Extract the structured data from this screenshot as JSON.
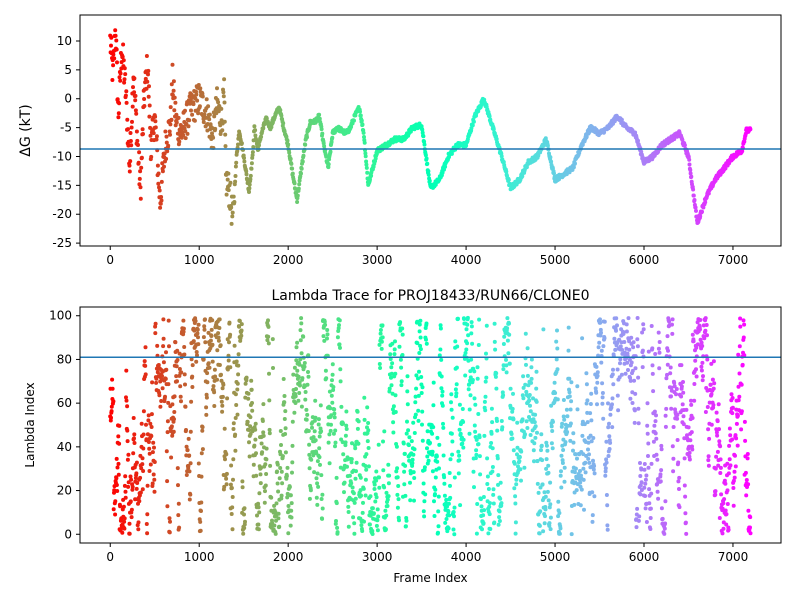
{
  "figure": {
    "colormap": "rainbow",
    "point_color_encoding": "frame index"
  },
  "chart_data": [
    {
      "type": "scatter",
      "title": "",
      "xlabel": "",
      "ylabel": "ΔG (kT)",
      "xlim": [
        -340,
        7540
      ],
      "ylim": [
        -25.5,
        14.5
      ],
      "xticks": [
        "0",
        "1000",
        "2000",
        "3000",
        "4000",
        "5000",
        "6000",
        "7000"
      ],
      "yticks": [
        "10",
        "5",
        "0",
        "-5",
        "-10",
        "-15",
        "-20",
        "-25"
      ],
      "grid": false,
      "legend": "none",
      "reference_line": {
        "y": -8.7,
        "color": "#1f77b4"
      },
      "n_frames": 7200,
      "trend": [
        [
          0,
          10
        ],
        [
          30,
          4
        ],
        [
          60,
          12.5
        ],
        [
          90,
          -3
        ],
        [
          130,
          9
        ],
        [
          170,
          2
        ],
        [
          220,
          -12
        ],
        [
          260,
          5
        ],
        [
          300,
          -6
        ],
        [
          340,
          -16
        ],
        [
          380,
          0
        ],
        [
          420,
          6
        ],
        [
          460,
          -9
        ],
        [
          500,
          -3
        ],
        [
          560,
          -18
        ],
        [
          620,
          -8
        ],
        [
          680,
          -4
        ],
        [
          700,
          3
        ],
        [
          740,
          -4
        ],
        [
          800,
          -6
        ],
        [
          900,
          -2
        ],
        [
          1000,
          0
        ],
        [
          1100,
          -3
        ],
        [
          1150,
          -7
        ],
        [
          1200,
          -1
        ],
        [
          1250,
          -4
        ],
        [
          1280,
          0.5
        ],
        [
          1300,
          -14
        ],
        [
          1340,
          -16
        ],
        [
          1380,
          -21
        ],
        [
          1400,
          -15
        ],
        [
          1420,
          -10
        ],
        [
          1450,
          -5.5
        ],
        [
          1480,
          -8
        ],
        [
          1520,
          -12
        ],
        [
          1560,
          -16
        ],
        [
          1600,
          -10
        ],
        [
          1620,
          -5
        ],
        [
          1660,
          -9
        ],
        [
          1700,
          -6
        ],
        [
          1750,
          -3.5
        ],
        [
          1800,
          -5
        ],
        [
          1850,
          -3
        ],
        [
          1900,
          -1.5
        ],
        [
          1950,
          -5
        ],
        [
          2000,
          -8
        ],
        [
          2050,
          -13
        ],
        [
          2100,
          -17.5
        ],
        [
          2150,
          -12
        ],
        [
          2200,
          -7
        ],
        [
          2250,
          -4
        ],
        [
          2300,
          -4
        ],
        [
          2350,
          -3
        ],
        [
          2400,
          -8
        ],
        [
          2450,
          -12
        ],
        [
          2500,
          -6
        ],
        [
          2550,
          -5
        ],
        [
          2600,
          -5.5
        ],
        [
          2650,
          -6
        ],
        [
          2700,
          -5
        ],
        [
          2750,
          -3
        ],
        [
          2800,
          -1.5
        ],
        [
          2850,
          -6
        ],
        [
          2900,
          -15
        ],
        [
          2950,
          -12
        ],
        [
          3000,
          -9
        ],
        [
          3100,
          -8
        ],
        [
          3200,
          -7
        ],
        [
          3300,
          -7
        ],
        [
          3400,
          -5
        ],
        [
          3500,
          -4.5
        ],
        [
          3600,
          -15.5
        ],
        [
          3700,
          -14
        ],
        [
          3800,
          -10
        ],
        [
          3900,
          -8
        ],
        [
          4000,
          -8
        ],
        [
          4100,
          -3
        ],
        [
          4200,
          0
        ],
        [
          4300,
          -5
        ],
        [
          4400,
          -10
        ],
        [
          4500,
          -15.5
        ],
        [
          4600,
          -14
        ],
        [
          4700,
          -11
        ],
        [
          4800,
          -10
        ],
        [
          4900,
          -7
        ],
        [
          5000,
          -14
        ],
        [
          5100,
          -13
        ],
        [
          5200,
          -12
        ],
        [
          5300,
          -8
        ],
        [
          5400,
          -5
        ],
        [
          5500,
          -6
        ],
        [
          5600,
          -5
        ],
        [
          5700,
          -3
        ],
        [
          5800,
          -5
        ],
        [
          5900,
          -6
        ],
        [
          6000,
          -11
        ],
        [
          6100,
          -10
        ],
        [
          6200,
          -8
        ],
        [
          6300,
          -7
        ],
        [
          6400,
          -6
        ],
        [
          6500,
          -10
        ],
        [
          6600,
          -21.5
        ],
        [
          6700,
          -17
        ],
        [
          6800,
          -14
        ],
        [
          6900,
          -12
        ],
        [
          7000,
          -10
        ],
        [
          7100,
          -9
        ],
        [
          7150,
          -5.5
        ],
        [
          7200,
          -5.5
        ]
      ]
    },
    {
      "type": "scatter",
      "title": "Lambda Trace for PROJ18433/RUN66/CLONE0",
      "xlabel": "Frame Index",
      "ylabel": "Lambda Index",
      "xlim": [
        -340,
        7540
      ],
      "ylim": [
        -4,
        104
      ],
      "xticks": [
        "0",
        "1000",
        "2000",
        "3000",
        "4000",
        "5000",
        "6000",
        "7000"
      ],
      "yticks": [
        "100",
        "80",
        "60",
        "40",
        "20",
        "0"
      ],
      "grid": false,
      "legend": "none",
      "reference_line": {
        "y": 81,
        "color": "#1f77b4"
      },
      "n_frames": 7200,
      "value_range": [
        0,
        99
      ]
    }
  ]
}
